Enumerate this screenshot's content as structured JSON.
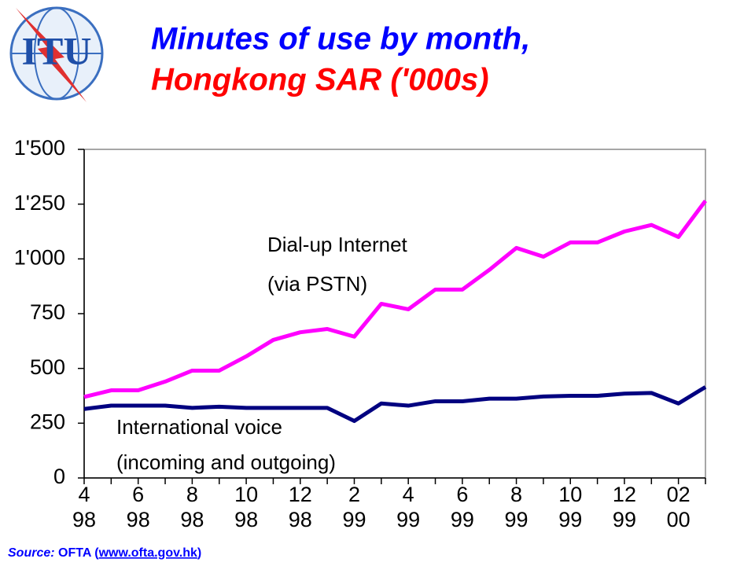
{
  "logo": "ITU",
  "chart_data": {
    "type": "line",
    "title": "Minutes of use by month,",
    "subtitle": "Hongkong SAR ('000s)",
    "categories": [
      "4",
      null,
      "6",
      null,
      "8",
      null,
      "10",
      null,
      "12",
      null,
      "2",
      null,
      "4",
      null,
      "6",
      null,
      "8",
      null,
      "10",
      null,
      "12",
      null,
      "02",
      null
    ],
    "category_years": [
      "98",
      null,
      "98",
      null,
      "98",
      null,
      "98",
      null,
      "98",
      null,
      "99",
      null,
      "99",
      null,
      "99",
      null,
      "99",
      null,
      "99",
      null,
      "99",
      null,
      "00",
      null
    ],
    "series": [
      {
        "name": "Dial-up Internet (via PSTN)",
        "color": "#ff00ff",
        "values": [
          370,
          400,
          400,
          440,
          490,
          490,
          555,
          630,
          665,
          680,
          645,
          795,
          770,
          860,
          860,
          950,
          1050,
          1010,
          1075,
          1075,
          1125,
          1155,
          1100,
          1265
        ]
      },
      {
        "name": "International voice (incoming and outgoing)",
        "color": "#000080",
        "values": [
          315,
          330,
          330,
          330,
          320,
          325,
          320,
          320,
          320,
          320,
          260,
          340,
          330,
          350,
          350,
          362,
          362,
          372,
          375,
          375,
          385,
          388,
          340,
          415
        ]
      }
    ],
    "annotations": [
      [
        "Dial-up Internet",
        "(via PSTN)"
      ],
      [
        "International voice",
        "(incoming and outgoing)"
      ]
    ],
    "ylim": [
      0,
      1500
    ],
    "yticks": [
      0,
      250,
      500,
      750,
      {
        "value": 1000,
        "label": "1'000"
      },
      {
        "value": 1250,
        "label": "1'250"
      },
      {
        "value": 1500,
        "label": "1'500"
      }
    ],
    "source": [
      "Source:",
      "OFTA (",
      "www.ofta.gov.hk",
      ")"
    ]
  }
}
